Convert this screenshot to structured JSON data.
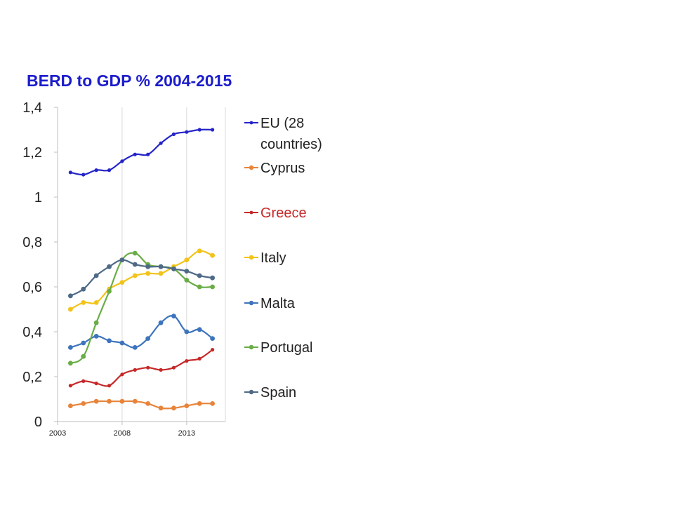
{
  "chart_data": {
    "type": "line",
    "title": "BERD to GDP % 2004-2015",
    "xlabel": "",
    "ylabel": "",
    "x": [
      2004,
      2005,
      2006,
      2007,
      2008,
      2009,
      2010,
      2011,
      2012,
      2013,
      2014,
      2015
    ],
    "xlim": [
      2003,
      2016
    ],
    "ylim": [
      0,
      1.4
    ],
    "x_ticks": [
      "2003",
      "2008",
      "2013"
    ],
    "y_ticks": [
      "0",
      "0,2",
      "0,4",
      "0,6",
      "0,8",
      "1",
      "1,2",
      "1,4"
    ],
    "grid": "vertical",
    "legend_position": "right",
    "series": [
      {
        "name": "EU (28 countries)",
        "legend_lines": [
          "EU (28",
          "countries)"
        ],
        "color": "#2424c8",
        "label_color": "#222222",
        "marker": "small",
        "values": [
          1.11,
          1.1,
          1.12,
          1.12,
          1.16,
          1.19,
          1.19,
          1.24,
          1.28,
          1.29,
          1.3,
          1.3
        ]
      },
      {
        "name": "Cyprus",
        "legend_lines": [
          "Cyprus"
        ],
        "color": "#e8843a",
        "label_color": "#222222",
        "marker": "circle",
        "values": [
          0.07,
          0.08,
          0.09,
          0.09,
          0.09,
          0.09,
          0.08,
          0.06,
          0.06,
          0.07,
          0.08,
          0.08
        ]
      },
      {
        "name": "Greece",
        "legend_lines": [
          "Greece"
        ],
        "color": "#c62828",
        "label_color": "#c62828",
        "marker": "small",
        "values": [
          0.16,
          0.18,
          0.17,
          0.16,
          0.21,
          0.23,
          0.24,
          0.23,
          0.24,
          0.27,
          0.28,
          0.32
        ]
      },
      {
        "name": "Italy",
        "legend_lines": [
          "Italy"
        ],
        "color": "#f2c319",
        "label_color": "#222222",
        "marker": "circle",
        "values": [
          0.5,
          0.53,
          0.53,
          0.59,
          0.62,
          0.65,
          0.66,
          0.66,
          0.69,
          0.72,
          0.76,
          0.74
        ]
      },
      {
        "name": "Malta",
        "legend_lines": [
          "Malta"
        ],
        "color": "#3d74bd",
        "label_color": "#222222",
        "marker": "circle",
        "values": [
          0.33,
          0.35,
          0.38,
          0.36,
          0.35,
          0.33,
          0.37,
          0.44,
          0.47,
          0.4,
          0.41,
          0.37
        ]
      },
      {
        "name": "Portugal",
        "legend_lines": [
          "Portugal"
        ],
        "color": "#6aad46",
        "label_color": "#222222",
        "marker": "circle",
        "values": [
          0.26,
          0.29,
          0.44,
          0.58,
          0.72,
          0.75,
          0.7,
          0.69,
          0.68,
          0.63,
          0.6,
          0.6
        ]
      },
      {
        "name": "Spain",
        "legend_lines": [
          "Spain"
        ],
        "color": "#4e6a86",
        "label_color": "#222222",
        "marker": "circle",
        "values": [
          0.56,
          0.59,
          0.65,
          0.69,
          0.72,
          0.7,
          0.69,
          0.69,
          0.68,
          0.67,
          0.65,
          0.64
        ]
      }
    ]
  }
}
